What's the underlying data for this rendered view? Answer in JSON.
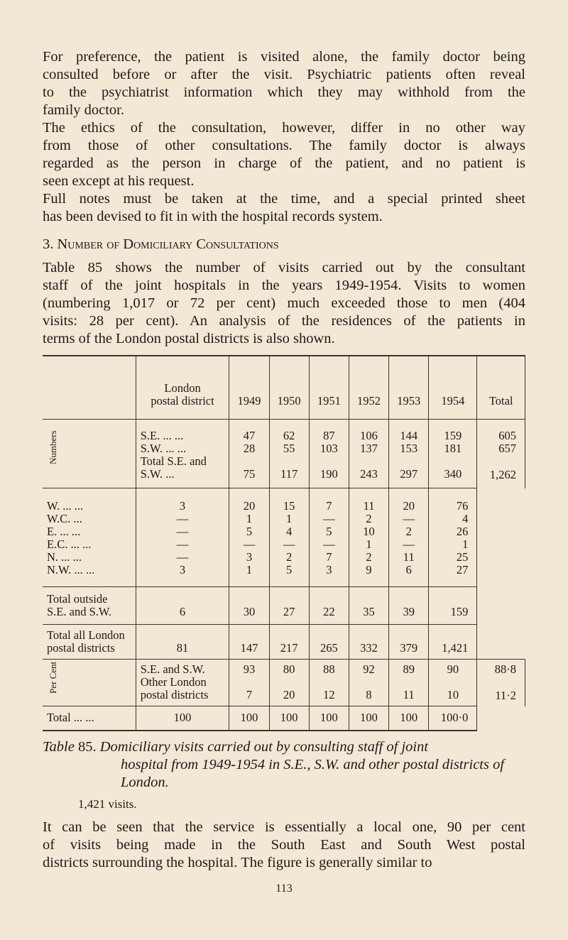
{
  "para1_lines": [
    "For preference, the patient is visited alone, the family doctor being",
    "consulted before or after the visit. Psychiatric patients often reveal",
    "to the psychiatrist information which they may withhold from the",
    "family doctor."
  ],
  "para2_lines": [
    "The ethics of the consultation, however, differ in no other way",
    "from those of other consultations. The family doctor is always",
    "regarded as the person in charge of the patient, and no patient is",
    "seen except at his request."
  ],
  "para3_lines": [
    "Full notes must be taken at the time, and a special printed sheet",
    "has been devised to fit in with the hospital records system."
  ],
  "heading": "3. Number of Domiciliary Consultations",
  "para4_lines": [
    "Table 85 shows the number of visits carried out by the consultant",
    "staff of the joint hospitals in the years 1949-1954. Visits to women",
    "(numbering 1,017 or 72 per cent) much exceeded those to men (404",
    "visits: 28 per cent). An analysis of the residences of the patients in",
    "terms of the London postal districts is also shown."
  ],
  "table": {
    "header": [
      "London\npostal district",
      "1949",
      "1950",
      "1951",
      "1952",
      "1953",
      "1954",
      "Total"
    ],
    "sections": [
      {
        "label": "Numbers",
        "groups": [
          [
            {
              "label": "S.E.   ...     ...",
              "values": [
                "47",
                "62",
                "87",
                "106",
                "144",
                "159",
                "605"
              ]
            },
            {
              "label": "S.W.  ...     ...",
              "values": [
                "28",
                "55",
                "103",
                "137",
                "153",
                "181",
                "657"
              ]
            },
            {
              "label": "Total S.E. and\n   S.W.        ...",
              "values": [
                "75",
                "117",
                "190",
                "243",
                "297",
                "340",
                "1,262"
              ]
            }
          ],
          [
            {
              "label": "W.     ...     ...",
              "values": [
                "3",
                "20",
                "15",
                "7",
                "11",
                "20",
                "76"
              ]
            },
            {
              "label": "W.C.           ...",
              "values": [
                "—",
                "1",
                "1",
                "—",
                "2",
                "—",
                "4"
              ]
            },
            {
              "label": "E.      ...     ...",
              "values": [
                "—",
                "5",
                "4",
                "5",
                "10",
                "2",
                "26"
              ]
            },
            {
              "label": "E.C.   ...     ...",
              "values": [
                "—",
                "—",
                "—",
                "—",
                "1",
                "—",
                "1"
              ]
            },
            {
              "label": "N.      ...     ...",
              "values": [
                "—",
                "3",
                "2",
                "7",
                "2",
                "11",
                "25"
              ]
            },
            {
              "label": "N.W.  ...     ...",
              "values": [
                "3",
                "1",
                "5",
                "3",
                "9",
                "6",
                "27"
              ]
            }
          ],
          [
            {
              "label": "Total outside\n   S.E. and S.W.",
              "values": [
                "6",
                "30",
                "27",
                "22",
                "35",
                "39",
                "159"
              ]
            }
          ],
          [
            {
              "label": "Total all London\n   postal districts",
              "values": [
                "81",
                "147",
                "217",
                "265",
                "332",
                "379",
                "1,421"
              ]
            }
          ]
        ]
      },
      {
        "label": "Per Cent",
        "groups": [
          [
            {
              "label": "S.E. and S.W.",
              "values": [
                "93",
                "80",
                "88",
                "92",
                "89",
                "90",
                "88·8"
              ]
            },
            {
              "label": "Other London\n   postal districts",
              "values": [
                "7",
                "20",
                "12",
                "8",
                "11",
                "10",
                "11·2"
              ]
            }
          ],
          [
            {
              "label": "Total ...       ...",
              "values": [
                "100",
                "100",
                "100",
                "100",
                "100",
                "100",
                "100·0"
              ]
            }
          ]
        ]
      }
    ]
  },
  "caption": {
    "prefix": "Table",
    "number": " 85.",
    "text_line1": "  Domiciliary visits carried out by consulting staff of joint",
    "text_rest": "hospital from 1949-1954 in S.E., S.W. and other postal districts of London."
  },
  "visits_note": "1,421 visits.",
  "para5_lines": [
    "It can be seen that the service is essentially a local one, 90 per cent",
    "of visits being made in the South East and South West postal",
    "districts surrounding the hospital. The figure is generally similar to"
  ],
  "page_number": "113"
}
